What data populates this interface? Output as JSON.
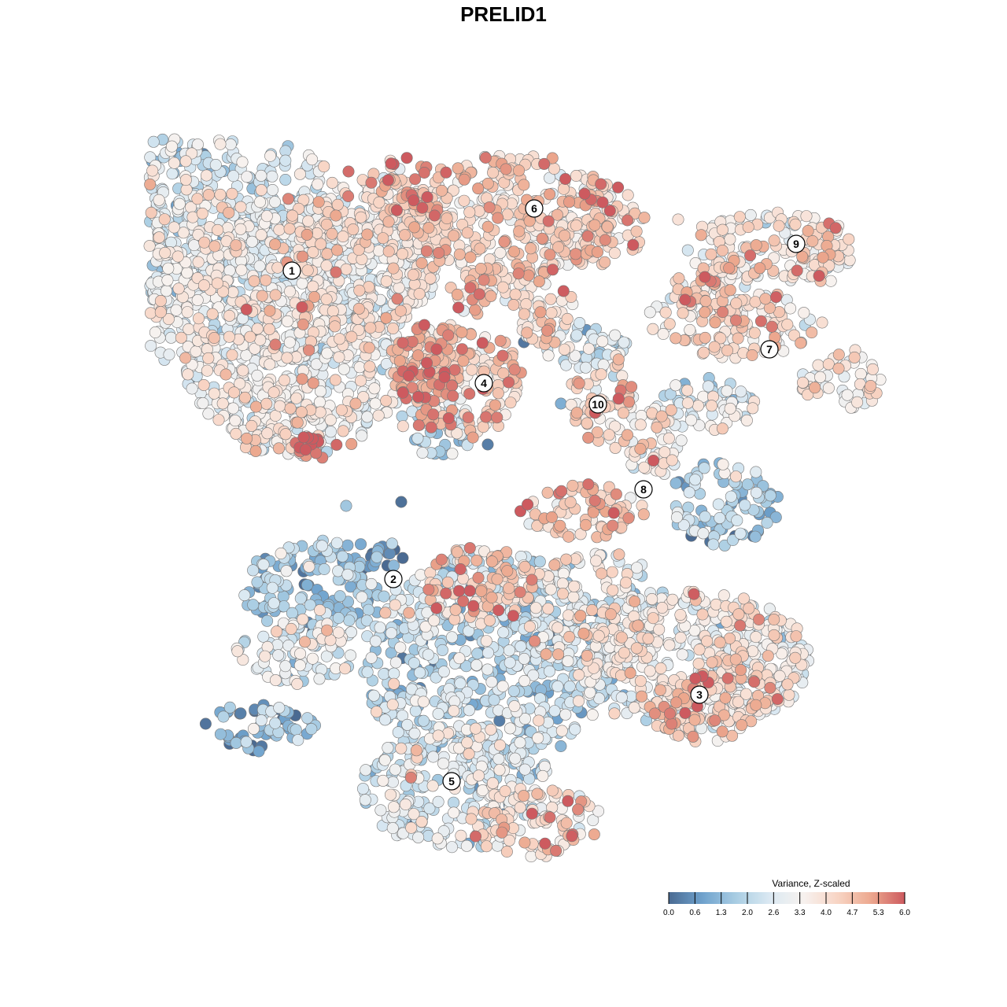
{
  "chart_data": {
    "type": "scatter",
    "title": "PRELID1",
    "xlabel": "",
    "ylabel": "",
    "grid": false,
    "axes_visible": false,
    "color_scale": {
      "title": "Variance, Z-scaled",
      "min": 0.0,
      "max": 6.0,
      "ticks": [
        "0.0",
        "0.6",
        "1.3",
        "2.0",
        "2.6",
        "3.3",
        "4.0",
        "4.7",
        "5.3",
        "6.0"
      ],
      "colors": [
        "#4a6a92",
        "#6fa2cd",
        "#a9cde3",
        "#dbe9f2",
        "#f7f2ef",
        "#f8d5c5",
        "#eca88e",
        "#cd5a5f"
      ],
      "placement": "bottom-right"
    },
    "clusters": [
      {
        "id": "1",
        "label": "1",
        "center": [
          371,
          344
        ],
        "mean_value": 3.2,
        "regions": [
          [
            240,
            270,
            200,
            115,
            2.6
          ],
          [
            300,
            355,
            250,
            110,
            3.2
          ],
          [
            470,
            280,
            110,
            55,
            3.7
          ],
          [
            470,
            335,
            90,
            70,
            2.8
          ],
          [
            375,
            470,
            140,
            110,
            3.2
          ],
          [
            355,
            535,
            65,
            45,
            3.6
          ],
          [
            395,
            570,
            35,
            15,
            5.8
          ]
        ]
      },
      {
        "id": "2",
        "label": "2",
        "center": [
          500,
          736
        ],
        "mean_value": 1.4,
        "regions": [
          [
            400,
            750,
            90,
            65,
            1.6
          ],
          [
            375,
            830,
            75,
            40,
            2.8
          ],
          [
            475,
            715,
            40,
            30,
            0.6
          ],
          [
            330,
            925,
            75,
            30,
            1.0
          ]
        ]
      },
      {
        "id": "3",
        "label": "3",
        "center": [
          889,
          883
        ],
        "mean_value": 3.8,
        "regions": [
          [
            880,
            840,
            150,
            90,
            3.2
          ],
          [
            950,
            840,
            70,
            70,
            3.6
          ],
          [
            890,
            900,
            70,
            45,
            4.4
          ]
        ]
      },
      {
        "id": "4",
        "label": "4",
        "center": [
          615,
          487
        ],
        "mean_value": 4.3,
        "regions": [
          [
            580,
            485,
            85,
            75,
            4.4
          ],
          [
            555,
            545,
            50,
            35,
            2.2
          ],
          [
            540,
            460,
            50,
            55,
            4.9
          ]
        ]
      },
      {
        "id": "5",
        "label": "5",
        "center": [
          574,
          993
        ],
        "mean_value": 2.6,
        "regions": [
          [
            620,
            840,
            160,
            140,
            2.2
          ],
          [
            580,
            1000,
            120,
            80,
            2.7
          ],
          [
            680,
            1045,
            85,
            45,
            4.1
          ],
          [
            610,
            745,
            70,
            50,
            4.5
          ],
          [
            760,
            780,
            90,
            80,
            3.2
          ]
        ]
      },
      {
        "id": "6",
        "label": "6",
        "center": [
          679,
          265
        ],
        "mean_value": 4.0,
        "regions": [
          [
            650,
            275,
            140,
            80,
            4.1
          ],
          [
            760,
            285,
            60,
            55,
            4.3
          ],
          [
            520,
            235,
            50,
            35,
            4.8
          ],
          [
            690,
            390,
            40,
            50,
            4.1
          ],
          [
            610,
            370,
            40,
            30,
            4.2
          ]
        ]
      },
      {
        "id": "7",
        "label": "7",
        "center": [
          978,
          444
        ],
        "mean_value": 3.8,
        "regions": [
          [
            930,
            410,
            110,
            45,
            3.9
          ],
          [
            1070,
            485,
            55,
            35,
            3.4
          ],
          [
            900,
            375,
            50,
            35,
            4.2
          ]
        ]
      },
      {
        "id": "8",
        "label": "8",
        "center": [
          818,
          622
        ],
        "mean_value": 3.4,
        "regions": [
          [
            920,
            640,
            70,
            55,
            1.6
          ],
          [
            740,
            650,
            80,
            35,
            4.5
          ],
          [
            830,
            560,
            50,
            45,
            3.6
          ],
          [
            900,
            515,
            60,
            35,
            2.6
          ]
        ]
      },
      {
        "id": "9",
        "label": "9",
        "center": [
          1012,
          310
        ],
        "mean_value": 3.7,
        "regions": [
          [
            980,
            315,
            110,
            45,
            3.6
          ],
          [
            1045,
            320,
            30,
            40,
            4.4
          ]
        ]
      },
      {
        "id": "10",
        "label": "10",
        "center": [
          760,
          514
        ],
        "mean_value": 4.0,
        "regions": [
          [
            765,
            505,
            40,
            60,
            4.0
          ],
          [
            740,
            440,
            60,
            30,
            2.4
          ]
        ]
      }
    ],
    "outliers": [
      [
        243,
        480,
        0.2
      ],
      [
        510,
        638,
        0.1
      ],
      [
        440,
        643,
        1.6
      ],
      [
        713,
        513,
        1.1
      ],
      [
        666,
        435,
        0.2
      ],
      [
        452,
        513,
        4.9
      ],
      [
        350,
        438,
        5.6
      ],
      [
        427,
        346,
        5.7
      ],
      [
        443,
        218,
        5.8
      ],
      [
        862,
        279,
        3.9
      ],
      [
        1045,
        410,
        4.0
      ],
      [
        1087,
        445,
        3.9
      ],
      [
        455,
        466,
        2.8
      ],
      [
        620,
        565,
        0.3
      ]
    ]
  }
}
